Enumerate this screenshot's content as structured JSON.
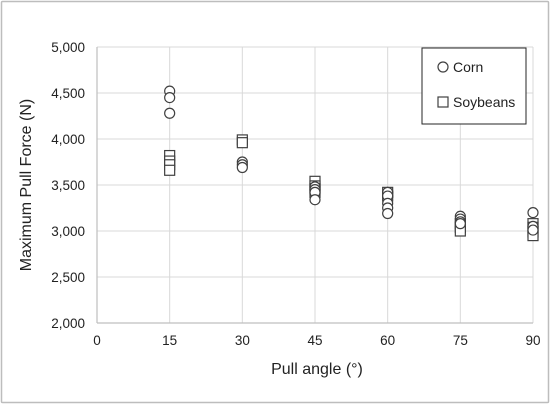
{
  "chart_data": {
    "type": "scatter",
    "title": "",
    "xlabel": "Pull angle (°)",
    "ylabel": "Maximum Pull Force (N)",
    "xlim": [
      0,
      90
    ],
    "ylim": [
      2000,
      5000
    ],
    "x_ticks": [
      0,
      15,
      30,
      45,
      60,
      75,
      90
    ],
    "x_tick_labels": [
      "0",
      "15",
      "30",
      "45",
      "60",
      "75",
      "90"
    ],
    "y_ticks": [
      2000,
      2500,
      3000,
      3500,
      4000,
      4500,
      5000
    ],
    "y_tick_labels": [
      "2,000",
      "2,500",
      "3,000",
      "3,500",
      "4,000",
      "4,500",
      "5,000"
    ],
    "grid": true,
    "legend_position": "top-right",
    "series": [
      {
        "name": "Corn",
        "marker": "circle",
        "x": [
          15,
          15,
          15,
          30,
          30,
          30,
          45,
          45,
          45,
          45,
          60,
          60,
          60,
          60,
          60,
          75,
          75,
          75,
          75,
          90,
          90,
          90
        ],
        "y": [
          4520,
          4450,
          4280,
          3750,
          3720,
          3690,
          3480,
          3450,
          3420,
          3340,
          3420,
          3380,
          3300,
          3250,
          3190,
          3160,
          3130,
          3100,
          3080,
          3200,
          3050,
          3010
        ]
      },
      {
        "name": "Soybeans",
        "marker": "square",
        "x": [
          15,
          15,
          15,
          15,
          30,
          30,
          45,
          45,
          45,
          45,
          60,
          60,
          75,
          75,
          75,
          90,
          90,
          90,
          90
        ],
        "y": [
          3820,
          3760,
          3720,
          3660,
          3990,
          3960,
          3540,
          3490,
          3460,
          3420,
          3420,
          3380,
          3080,
          3040,
          3000,
          3080,
          3040,
          2990,
          2950
        ]
      }
    ]
  }
}
